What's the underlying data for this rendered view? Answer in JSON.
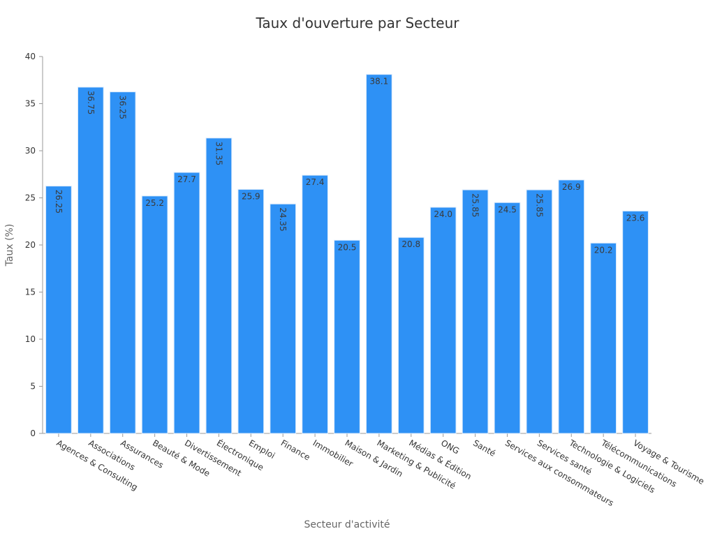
{
  "chart_data": {
    "type": "bar",
    "title": "Taux d'ouverture par Secteur",
    "xlabel": "Secteur d'activité",
    "ylabel": "Taux (%)",
    "ylim": [
      0,
      40
    ],
    "yticks": [
      0,
      5,
      10,
      15,
      20,
      25,
      30,
      35,
      40
    ],
    "grid": false,
    "bar_color": "#2e91f5",
    "bar_edge_color": "#d9e9fb",
    "categories": [
      "Agences & Consulting",
      "Associations",
      "Assurances",
      "Beauté & Mode",
      "Divertissement",
      "Électronique",
      "Emploi",
      "Finance",
      "Immobilier",
      "Maison & Jardin",
      "Marketing & Publicité",
      "Médias & Édition",
      "ONG",
      "Santé",
      "Services aux consommateurs",
      "Services santé",
      "Technologie & Logiciels",
      "Télécommunications",
      "Voyage & Tourisme"
    ],
    "values": [
      26.25,
      36.75,
      36.25,
      25.2,
      27.7,
      31.35,
      25.9,
      24.35,
      27.4,
      20.5,
      38.1,
      20.8,
      24.0,
      25.85,
      24.5,
      25.85,
      26.9,
      20.2,
      23.6
    ],
    "data_labels": [
      "26.25",
      "36.75",
      "36.25",
      "25.2",
      "27.7",
      "31.35",
      "25.9",
      "24.35",
      "27.4",
      "20.5",
      "38.1",
      "20.8",
      "24.0",
      "25.85",
      "24.5",
      "25.85",
      "26.9",
      "20.2",
      "23.6"
    ]
  }
}
